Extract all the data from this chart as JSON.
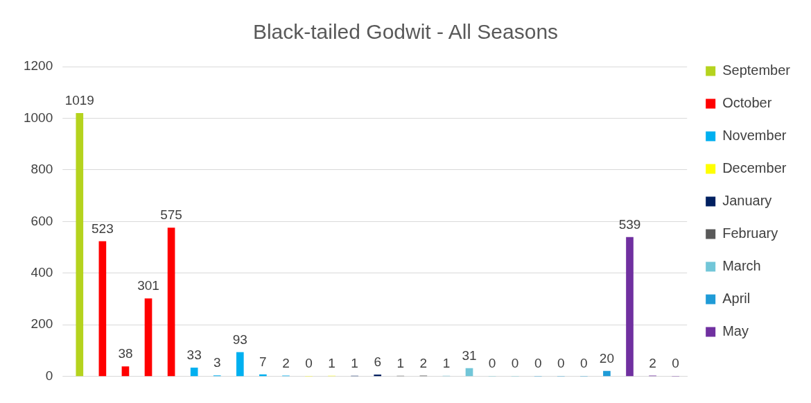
{
  "chart_data": {
    "type": "bar",
    "title": "Black-tailed Godwit - All Seasons",
    "categories": [
      null,
      null,
      null,
      null,
      null,
      null,
      null,
      null,
      null,
      null,
      null,
      null,
      null,
      null,
      null,
      null,
      null,
      null,
      null,
      null,
      null,
      null,
      null,
      null,
      null,
      null,
      null
    ],
    "series": [
      {
        "name": "September",
        "color": "#b5d31e",
        "values": [
          1019,
          null,
          null,
          null,
          null,
          null,
          null,
          null,
          null,
          null,
          null,
          null,
          null,
          null,
          null,
          null,
          null,
          null,
          null,
          null,
          null,
          null,
          null,
          null,
          null,
          null,
          null
        ]
      },
      {
        "name": "October",
        "color": "#ff0000",
        "values": [
          null,
          523,
          38,
          301,
          575,
          null,
          null,
          null,
          null,
          null,
          null,
          null,
          null,
          null,
          null,
          null,
          null,
          null,
          null,
          null,
          null,
          null,
          null,
          null,
          null,
          null,
          null
        ]
      },
      {
        "name": "November",
        "color": "#00b0f0",
        "values": [
          null,
          null,
          null,
          null,
          null,
          33,
          3,
          93,
          7,
          2,
          null,
          null,
          null,
          null,
          null,
          null,
          null,
          null,
          null,
          null,
          null,
          null,
          null,
          null,
          null,
          null,
          null
        ]
      },
      {
        "name": "December",
        "color": "#ffff00",
        "values": [
          null,
          null,
          null,
          null,
          null,
          null,
          null,
          null,
          null,
          null,
          0,
          1,
          null,
          null,
          null,
          null,
          null,
          null,
          null,
          null,
          null,
          null,
          null,
          null,
          null,
          null,
          null
        ]
      },
      {
        "name": "January",
        "color": "#002060",
        "values": [
          null,
          null,
          null,
          null,
          null,
          null,
          null,
          null,
          null,
          null,
          null,
          null,
          1,
          6,
          null,
          null,
          null,
          null,
          null,
          null,
          null,
          null,
          null,
          null,
          null,
          null,
          null
        ]
      },
      {
        "name": "February",
        "color": "#595959",
        "values": [
          null,
          null,
          null,
          null,
          null,
          null,
          null,
          null,
          null,
          null,
          null,
          null,
          null,
          null,
          1,
          2,
          null,
          null,
          null,
          null,
          null,
          null,
          null,
          null,
          null,
          null,
          null
        ]
      },
      {
        "name": "March",
        "color": "#72c6d8",
        "values": [
          null,
          null,
          null,
          null,
          null,
          null,
          null,
          null,
          null,
          null,
          null,
          null,
          null,
          null,
          null,
          null,
          1,
          31,
          0,
          0,
          null,
          null,
          null,
          null,
          null,
          null,
          null
        ]
      },
      {
        "name": "April",
        "color": "#1f9bd7",
        "values": [
          null,
          null,
          null,
          null,
          null,
          null,
          null,
          null,
          null,
          null,
          null,
          null,
          null,
          null,
          null,
          null,
          null,
          null,
          null,
          null,
          0,
          0,
          0,
          20,
          null,
          null,
          null
        ]
      },
      {
        "name": "May",
        "color": "#7030a0",
        "values": [
          null,
          null,
          null,
          null,
          null,
          null,
          null,
          null,
          null,
          null,
          null,
          null,
          null,
          null,
          null,
          null,
          null,
          null,
          null,
          null,
          null,
          null,
          null,
          null,
          539,
          2,
          0
        ]
      }
    ],
    "ylim": [
      0,
      1200
    ],
    "yticks": [
      0,
      200,
      400,
      600,
      800,
      1000,
      1200
    ],
    "grid": "y",
    "legend": "right",
    "data_labels": true
  }
}
